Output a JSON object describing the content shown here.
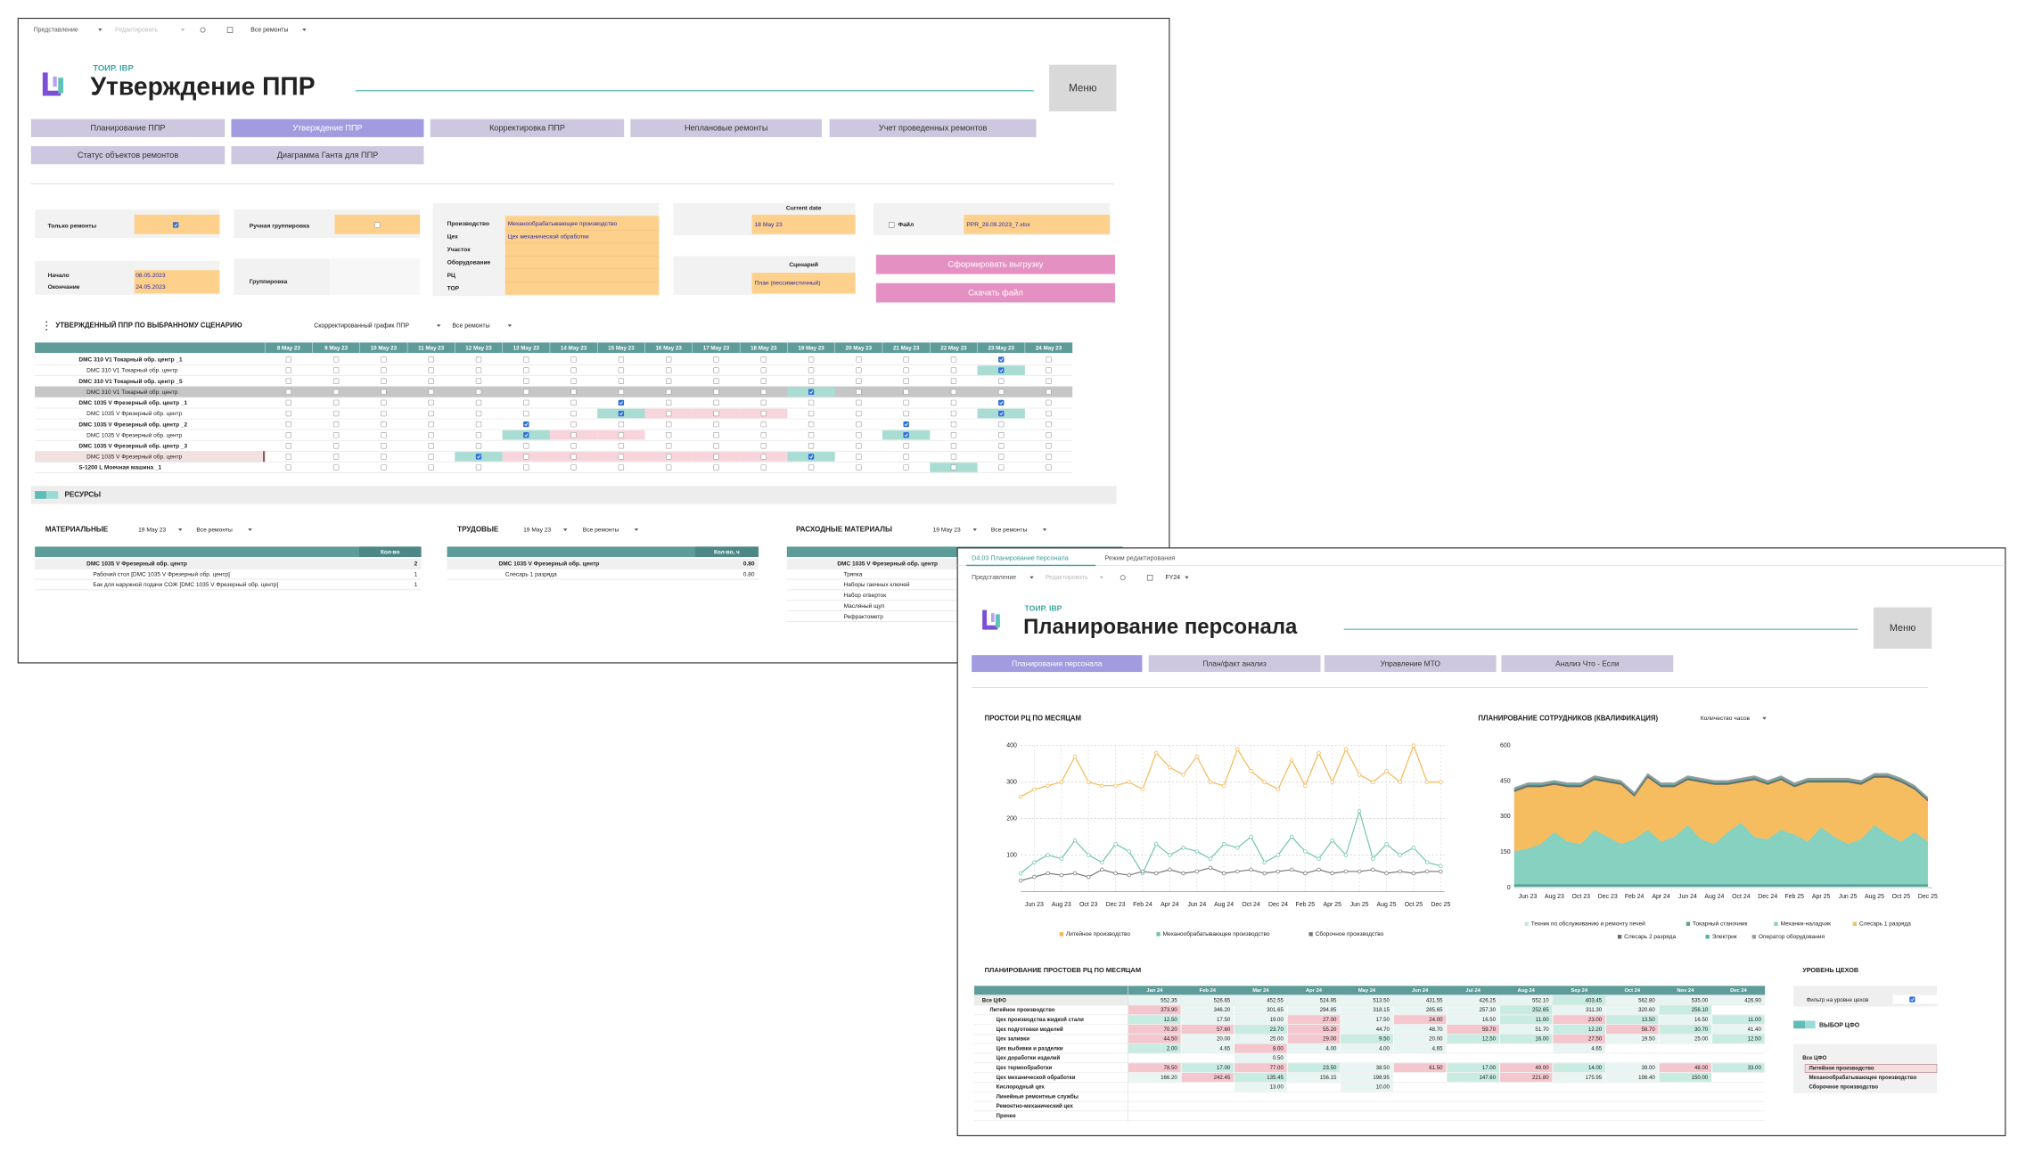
{
  "window1": {
    "toolbar": [
      "Представление",
      "Редактировать",
      "Все ремонты"
    ],
    "brand": "ТОИР. IBP",
    "title": "Утверждение ППР",
    "menu": "Меню",
    "nav": [
      "Планирование ППР",
      "Утверждение ППР",
      "Корректировка ППР",
      "Неплановые ремонты",
      "Учет проведенных ремонтов",
      "Статус объектов ремонтов",
      "Диаграмма Ганта для ППР"
    ],
    "filters": {
      "only_repairs": "Только ремонты",
      "manual_grouping": "Ручная группировка",
      "start": "Начало",
      "end": "Окончание",
      "start_value": "08.05.2023",
      "end_value": "24.05.2023",
      "grouping": "Группировка",
      "fields": [
        "Производство",
        "Цех",
        "Участок",
        "Оборудование",
        "РЦ",
        "ТОР"
      ],
      "field_values": [
        "Механообрабатывающее производство",
        "Цех механической обработки"
      ],
      "current_date": "Current date",
      "current_date_value": "18 May 23",
      "scenario": "Сценарий",
      "scenario_value": "План (пессимистичный)",
      "file": "Файл",
      "file_value": "PPR_28.09.2023_7.xlsx"
    },
    "buttons": [
      "Сформировать выгрузку",
      "Скачать файл"
    ],
    "section": "УТВЕРЖДЕННЫЙ ППР ПО ВЫБРАННОМУ СЦЕНАРИЮ",
    "section_filters": [
      "Скорректированный график ППР",
      "Все ремонты"
    ],
    "gantt": {
      "dates": [
        "8 May 23",
        "9 May 23",
        "10 May 23",
        "11 May 23",
        "12 May 23",
        "13 May 23",
        "14 May 23",
        "15 May 23",
        "16 May 23",
        "17 May 23",
        "18 May 23",
        "19 May 23",
        "20 May 23",
        "21 May 23",
        "22 May 23",
        "23 May 23",
        "24 May 23"
      ],
      "rows": [
        "DMC 310 V1 Токарный обр. центр _1",
        "DMC 310 V1 Токарный обр. центр",
        "DMC 310 V1 Токарный обр. центр _5",
        "DMC 310 V1 Токарный обр. центр",
        "DMC 1035 V Фрезерный обр. центр _1",
        "DMC 1035 V Фрезерный обр. центр",
        "DMC 1035 V Фрезерный обр. центр _2",
        "DMC 1035 V Фрезерный обр. центр",
        "DMC 1035 V Фрезерный обр. центр _3",
        "DMC 1035 V Фрезерный обр. центр",
        "S-1200 L Моечная машина _1"
      ]
    },
    "resources": "РЕСУРСЫ",
    "panels": [
      {
        "title": "МАТЕРИАЛЬНЫЕ",
        "date": "19 May 23",
        "filter": "Все ремонты",
        "column": "Кол-во",
        "rows": [
          [
            "DMC 1035 V Фрезерный обр. центр",
            "2"
          ],
          [
            "Рабочий стол [DMC 1035 V Фрезерный обр. центр]",
            "1"
          ],
          [
            "Бак для наружной подачи СОЖ [DMC 1035 V Фрезерный обр. центр]",
            "1"
          ]
        ]
      },
      {
        "title": "ТРУДОВЫЕ",
        "date": "19 May 23",
        "filter": "Все ремонты",
        "column": "Кол-во, ч",
        "rows": [
          [
            "DMC 1035 V Фрезерный обр. центр",
            "0.80"
          ],
          [
            "Слесарь 1 разряда",
            "0.80"
          ]
        ]
      },
      {
        "title": "РАСХОДНЫЕ МАТЕРИАЛЫ",
        "date": "19 May 23",
        "filter": "Все ремонты",
        "rows": [
          [
            "DMC 1035 V Фрезерный обр. центр"
          ],
          [
            "Тряпка"
          ],
          [
            "Наборы гаечных ключей"
          ],
          [
            "Набор отверток"
          ],
          [
            "Масляный щуп"
          ],
          [
            "Рефрактометр"
          ]
        ]
      }
    ]
  },
  "window2": {
    "tabs": [
      "D4.03 Планирование персонала",
      "Режим редактирования"
    ],
    "toolbar": [
      "Представление",
      "Редактировать",
      "FY24"
    ],
    "brand": "ТОИР. IBP",
    "title": "Планирование персонала",
    "menu": "Меню",
    "nav": [
      "Планирование персонала",
      "План/факт анализ",
      "Управление МТО",
      "Анализ Что - Если"
    ],
    "charts": [
      {
        "type": "line",
        "title": "ПРОСТОИ РЦ ПО МЕСЯЦАМ",
        "grid": true,
        "categories": [
          null,
          "Jun 23",
          null,
          "Aug 23",
          null,
          "Oct 23",
          null,
          "Dec 23",
          null,
          "Feb 24",
          null,
          "Apr 24",
          null,
          "Jun 24",
          null,
          "Aug 24",
          null,
          "Oct 24",
          null,
          "Dec 24",
          null,
          "Feb 25",
          null,
          "Apr 25",
          null,
          "Jun 25",
          null,
          "Aug 25",
          null,
          "Oct 25",
          null,
          "Dec 25"
        ],
        "ylim": [
          0,
          400
        ],
        "yticks": [
          100,
          200,
          300,
          400
        ],
        "series": [
          {
            "name": "Литейное производство",
            "color": "#f5b651",
            "values": [
              260,
              280,
              290,
              300,
              370,
              300,
              290,
              290,
              300,
              280,
              380,
              340,
              320,
              370,
              300,
              290,
              390,
              330,
              300,
              280,
              360,
              290,
              380,
              300,
              390,
              320,
              300,
              330,
              300,
              400,
              300,
              300
            ]
          },
          {
            "name": "Механообрабатывающее производство",
            "color": "#6cc3b0",
            "values": [
              50,
              80,
              100,
              90,
              140,
              100,
              80,
              130,
              110,
              50,
              130,
              100,
              120,
              110,
              90,
              130,
              120,
              150,
              80,
              100,
              150,
              110,
              90,
              140,
              100,
              220,
              90,
              130,
              100,
              120,
              80,
              70
            ]
          },
          {
            "name": "Сборочное производство",
            "color": "#777777",
            "values": [
              30,
              40,
              50,
              45,
              50,
              40,
              60,
              50,
              45,
              55,
              50,
              60,
              50,
              55,
              65,
              50,
              55,
              60,
              50,
              55,
              60,
              50,
              60,
              50,
              55,
              55,
              60,
              50,
              55,
              50,
              55,
              55
            ]
          }
        ]
      },
      {
        "type": "area",
        "title": "ПЛАНИРОВАНИЕ СОТРУДНИКОВ (КВАЛИФИКАЦИЯ)",
        "dropdown": "Количество часов",
        "grid": false,
        "categories": [
          null,
          "Jun 23",
          null,
          "Aug 23",
          null,
          "Oct 23",
          null,
          "Dec 23",
          null,
          "Feb 24",
          null,
          "Apr 24",
          null,
          "Jun 24",
          null,
          "Aug 24",
          null,
          "Oct 24",
          null,
          "Dec 24",
          null,
          "Feb 25",
          null,
          "Apr 25",
          null,
          "Jun 25",
          null,
          "Aug 25",
          null,
          "Oct 25",
          null,
          "Dec 25"
        ],
        "ylim": [
          0,
          600
        ],
        "yticks": [
          0,
          150,
          300,
          450,
          600
        ],
        "series": [
          {
            "name": "Техник по обслуживанию и ремонту печей",
            "color": "#c6e6e2",
            "values": [
              5,
              5,
              5,
              5,
              5,
              5,
              5,
              5,
              5,
              5,
              5,
              5,
              5,
              5,
              5,
              5,
              5,
              5,
              5,
              5,
              5,
              5,
              5,
              5,
              5,
              5,
              5,
              5,
              5,
              5,
              5,
              5
            ]
          },
          {
            "name": "Токарный станочник",
            "color": "#5b9e98",
            "values": [
              10,
              10,
              10,
              10,
              10,
              10,
              10,
              10,
              10,
              10,
              10,
              10,
              10,
              10,
              10,
              10,
              10,
              10,
              10,
              10,
              10,
              10,
              10,
              10,
              10,
              10,
              10,
              10,
              10,
              10,
              10,
              10
            ]
          },
          {
            "name": "Механик-наладчик",
            "color": "#86d1bf",
            "values": [
              140,
              150,
              170,
              220,
              180,
              170,
              230,
              200,
              170,
              190,
              230,
              180,
              200,
              250,
              190,
              170,
              220,
              260,
              200,
              190,
              230,
              210,
              180,
              240,
              200,
              170,
              190,
              250,
              210,
              180,
              220,
              180
            ]
          },
          {
            "name": "Слесарь 1 разряда",
            "color": "#f6bd60",
            "values": [
              250,
              260,
              240,
              200,
              230,
              240,
              210,
              230,
              250,
              180,
              220,
              230,
              210,
              190,
              240,
              250,
              200,
              170,
              240,
              230,
              210,
              200,
              250,
              190,
              230,
              260,
              230,
              200,
              240,
              250,
              180,
              170
            ]
          },
          {
            "name": "Слесарь 2 разряда",
            "color": "#6b6b6b",
            "values": [
              8,
              8,
              8,
              8,
              8,
              8,
              8,
              8,
              8,
              8,
              8,
              8,
              8,
              8,
              8,
              8,
              8,
              8,
              8,
              8,
              8,
              8,
              8,
              8,
              8,
              8,
              8,
              8,
              8,
              8,
              8,
              8
            ]
          },
          {
            "name": "Электрик",
            "color": "#4fb3a6",
            "values": [
              4,
              4,
              4,
              4,
              4,
              4,
              4,
              4,
              4,
              4,
              4,
              4,
              4,
              4,
              4,
              4,
              4,
              4,
              4,
              4,
              4,
              4,
              4,
              4,
              4,
              4,
              4,
              4,
              4,
              4,
              4,
              4
            ]
          },
          {
            "name": "Оператор оборудования",
            "color": "#9a9a9a",
            "values": [
              6,
              6,
              6,
              6,
              6,
              6,
              6,
              6,
              6,
              6,
              6,
              6,
              6,
              6,
              6,
              6,
              6,
              6,
              6,
              6,
              6,
              6,
              6,
              6,
              6,
              6,
              6,
              6,
              6,
              6,
              6,
              6
            ]
          }
        ]
      }
    ],
    "table": {
      "title": "ПЛАНИРОВАНИЕ ПРОСТОЕВ РЦ ПО МЕСЯЦАМ",
      "months": [
        "Jan 24",
        "Feb 24",
        "Mar 24",
        "Apr 24",
        "May 24",
        "Jun 24",
        "Jul 24",
        "Aug 24",
        "Sep 24",
        "Oct 24",
        "Nov 24",
        "Dec 24"
      ],
      "rows": [
        {
          "label": "Все ЦФО",
          "values": [
            "552.35",
            "526.65",
            "452.55",
            "524.95",
            "513.50",
            "431.55",
            "426.25",
            "552.10",
            "403.45",
            "562.80",
            "535.00",
            "426.90"
          ]
        },
        {
          "label": "Литейное производство",
          "values": [
            "373.90",
            "346.20",
            "301.65",
            "294.85",
            "318.15",
            "285.65",
            "257.30",
            "252.65",
            "311.30",
            "320.60",
            "256.10",
            null
          ]
        },
        {
          "label": "Цех производства жидкой стали",
          "values": [
            "12.50",
            "17.50",
            "19.00",
            "27.00",
            "17.50",
            "24.00",
            "16.50",
            "11.00",
            "23.00",
            "13.50",
            "16.50",
            "11.00"
          ]
        },
        {
          "label": "Цех подготовки моделей",
          "values": [
            "70.20",
            "57.60",
            "23.70",
            "55.20",
            "44.70",
            "48.70",
            "59.70",
            "51.70",
            "12.20",
            "58.70",
            "30.70",
            "41.40"
          ]
        },
        {
          "label": "Цех заливки",
          "values": [
            "44.50",
            "20.00",
            "25.00",
            "29.00",
            "9.50",
            "20.00",
            "12.50",
            "16.00",
            "27.50",
            "19.50",
            "25.00",
            "12.50"
          ]
        },
        {
          "label": "Цех выбивки и разделки",
          "values": [
            "2.00",
            "4.65",
            "8.00",
            "4.00",
            "4.00",
            "4.65",
            null,
            null,
            "4.65",
            null,
            null,
            null
          ]
        },
        {
          "label": "Цех доработки изделий",
          "values": [
            null,
            null,
            "0.50",
            null,
            null,
            null,
            null,
            null,
            null,
            null,
            null,
            null
          ]
        },
        {
          "label": "Цех термообработки",
          "values": [
            "78.50",
            "17.00",
            "77.00",
            "23.50",
            "38.50",
            "61.50",
            "17.00",
            "49.00",
            "14.00",
            "39.00",
            "48.00",
            "33.00"
          ]
        },
        {
          "label": "Цех механической обработки",
          "values": [
            "166.20",
            "242.45",
            "135.45",
            "156.15",
            "198.95",
            null,
            "147.60",
            "221.80",
            "175.95",
            "198.40",
            "150.00",
            null
          ]
        },
        {
          "label": "Кислородный цех",
          "values": [
            null,
            null,
            "13.00",
            null,
            "10.00",
            null,
            null,
            null,
            null,
            null,
            null,
            null
          ]
        },
        {
          "label": "Линейные ремонтные службы",
          "values": [
            null,
            null,
            null,
            null,
            null,
            null,
            null,
            null,
            null,
            null,
            null,
            null
          ]
        },
        {
          "label": "Ремонтно-механический цех",
          "values": [
            null,
            null,
            null,
            null,
            null,
            null,
            null,
            null,
            null,
            null,
            null,
            null
          ]
        },
        {
          "label": "Прочее",
          "values": [
            null,
            null,
            null,
            null,
            null,
            null,
            null,
            null,
            null,
            null,
            null,
            null
          ]
        }
      ]
    },
    "side": {
      "title": "УРОВЕНЬ ЦЕХОВ",
      "filter": "Фильтр на уровне цехов",
      "choice": "ВЫБОР ЦФО",
      "options": [
        "Все ЦФО",
        "Литейное производство",
        "Механообрабатывающее производство",
        "Сборочное производство"
      ]
    }
  }
}
